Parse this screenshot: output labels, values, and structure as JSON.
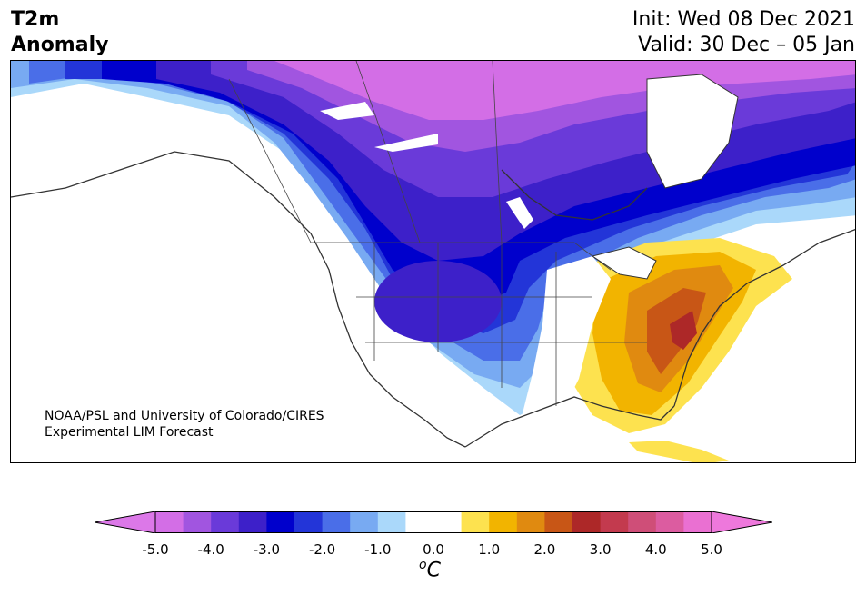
{
  "title": {
    "left_line1": "T2m",
    "left_line2": "Anomaly",
    "init": "Init: Wed 08 Dec 2021",
    "valid": "Valid: 30 Dec – 05 Jan"
  },
  "credit": {
    "line1": "NOAA/PSL and University of Colorado/CIRES",
    "line2": "Experimental LIM Forecast"
  },
  "colorbar": {
    "ticks": [
      "-5.0",
      "-4.0",
      "-3.0",
      "-2.0",
      "-1.0",
      "0.0",
      "1.0",
      "2.0",
      "3.0",
      "4.0",
      "5.0"
    ],
    "unit_base": "C",
    "unit_prefix": "o",
    "colors": [
      "#d36ee6",
      "#a155e0",
      "#6a3ad9",
      "#3d20c9",
      "#0000cc",
      "#2335d8",
      "#4a6ee8",
      "#78aaf2",
      "#aad8fa",
      "#ffffff",
      "#ffffff",
      "#fde24f",
      "#f2b400",
      "#e08a10",
      "#c85616",
      "#ad2828",
      "#c33a4e",
      "#cf4e78",
      "#dc5ca0",
      "#ea70d2"
    ],
    "left_extend_color": "#dc78e8",
    "right_extend_color": "#ee78dc"
  },
  "chart_data": {
    "type": "heatmap",
    "variable": "T2m Anomaly",
    "unit": "°C",
    "levels": [
      -5.0,
      -4.5,
      -4.0,
      -3.5,
      -3.0,
      -2.5,
      -2.0,
      -1.5,
      -1.0,
      -0.5,
      0.0,
      0.5,
      1.0,
      1.5,
      2.0,
      2.5,
      3.0,
      3.5,
      4.0,
      4.5,
      5.0
    ],
    "region": "North America"
  }
}
